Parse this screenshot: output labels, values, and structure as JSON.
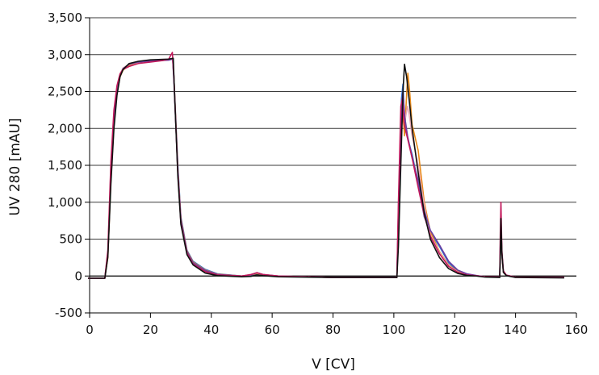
{
  "chart_data": {
    "type": "line",
    "xlabel": "V [CV]",
    "ylabel": "UV 280 [mAU]",
    "xlim": [
      0,
      160
    ],
    "ylim": [
      -500,
      3500
    ],
    "xticks": [
      0,
      20,
      40,
      60,
      80,
      100,
      120,
      140,
      160
    ],
    "yticks": [
      -500,
      0,
      500,
      1000,
      1500,
      2000,
      2500,
      3000,
      3500
    ],
    "xtick_labels": [
      "0",
      "20",
      "40",
      "60",
      "80",
      "100",
      "120",
      "140",
      "160"
    ],
    "ytick_labels": [
      "-500",
      "0",
      "500",
      "1,000",
      "1,500",
      "2,000",
      "2,500",
      "3,000",
      "3,500"
    ],
    "grid": "horizontal",
    "series": [
      {
        "color": "#2e6fd1",
        "points": [
          [
            -0.5,
            -30
          ],
          [
            5,
            -30
          ],
          [
            6,
            300
          ],
          [
            7,
            1400
          ],
          [
            8,
            2100
          ],
          [
            9,
            2500
          ],
          [
            10,
            2720
          ],
          [
            11,
            2810
          ],
          [
            13,
            2870
          ],
          [
            16,
            2900
          ],
          [
            20,
            2920
          ],
          [
            26,
            2930
          ],
          [
            27.3,
            2940
          ],
          [
            27.7,
            2700
          ],
          [
            29,
            1500
          ],
          [
            30,
            800
          ],
          [
            32,
            350
          ],
          [
            34,
            200
          ],
          [
            38,
            90
          ],
          [
            42,
            30
          ],
          [
            50,
            0
          ],
          [
            53,
            10
          ],
          [
            55,
            30
          ],
          [
            57,
            15
          ],
          [
            62,
            0
          ],
          [
            80,
            -20
          ],
          [
            101,
            -20
          ],
          [
            101.5,
            800
          ],
          [
            102.5,
            2400
          ],
          [
            103,
            2600
          ],
          [
            103.4,
            2200
          ],
          [
            104,
            1950
          ],
          [
            106,
            1650
          ],
          [
            108,
            1250
          ],
          [
            110,
            800
          ],
          [
            112,
            600
          ],
          [
            115,
            400
          ],
          [
            118,
            180
          ],
          [
            121,
            70
          ],
          [
            124,
            25
          ],
          [
            127,
            5
          ],
          [
            130,
            -10
          ],
          [
            134.8,
            -15
          ],
          [
            135,
            400
          ],
          [
            135.2,
            750
          ],
          [
            135.5,
            300
          ],
          [
            136,
            60
          ],
          [
            137,
            10
          ],
          [
            140,
            -15
          ],
          [
            156,
            -20
          ]
        ]
      },
      {
        "color": "#e88a1a",
        "points": [
          [
            -0.5,
            -30
          ],
          [
            5,
            -30
          ],
          [
            6,
            250
          ],
          [
            7,
            1300
          ],
          [
            8,
            2050
          ],
          [
            9,
            2480
          ],
          [
            10,
            2700
          ],
          [
            11,
            2790
          ],
          [
            13,
            2860
          ],
          [
            16,
            2900
          ],
          [
            20,
            2920
          ],
          [
            26,
            2930
          ],
          [
            27.3,
            2950
          ],
          [
            27.7,
            2700
          ],
          [
            29,
            1450
          ],
          [
            30,
            780
          ],
          [
            32,
            340
          ],
          [
            34,
            190
          ],
          [
            38,
            80
          ],
          [
            42,
            25
          ],
          [
            50,
            0
          ],
          [
            53,
            15
          ],
          [
            55,
            35
          ],
          [
            57,
            15
          ],
          [
            62,
            0
          ],
          [
            80,
            -20
          ],
          [
            101,
            -20
          ],
          [
            101.5,
            600
          ],
          [
            102.5,
            2000
          ],
          [
            103,
            2200
          ],
          [
            103.5,
            1900
          ],
          [
            104,
            2300
          ],
          [
            104.6,
            2750
          ],
          [
            105.2,
            2500
          ],
          [
            106,
            2050
          ],
          [
            108,
            1700
          ],
          [
            110,
            1000
          ],
          [
            112,
            600
          ],
          [
            115,
            330
          ],
          [
            118,
            150
          ],
          [
            121,
            60
          ],
          [
            124,
            20
          ],
          [
            127,
            5
          ],
          [
            130,
            -10
          ],
          [
            134.8,
            -15
          ],
          [
            135,
            350
          ],
          [
            135.2,
            700
          ],
          [
            135.5,
            280
          ],
          [
            136,
            50
          ],
          [
            137,
            10
          ],
          [
            140,
            -15
          ],
          [
            156,
            -20
          ]
        ]
      },
      {
        "color": "#e9a8b4",
        "points": [
          [
            -0.5,
            -30
          ],
          [
            5,
            -30
          ],
          [
            6,
            320
          ],
          [
            7,
            1500
          ],
          [
            8,
            2200
          ],
          [
            9,
            2560
          ],
          [
            10,
            2740
          ],
          [
            11,
            2820
          ],
          [
            13,
            2870
          ],
          [
            16,
            2905
          ],
          [
            20,
            2920
          ],
          [
            26,
            2935
          ],
          [
            27.3,
            2950
          ],
          [
            27.7,
            2680
          ],
          [
            29,
            1400
          ],
          [
            30,
            740
          ],
          [
            32,
            320
          ],
          [
            34,
            170
          ],
          [
            38,
            70
          ],
          [
            42,
            20
          ],
          [
            50,
            0
          ],
          [
            53,
            20
          ],
          [
            55,
            40
          ],
          [
            57,
            20
          ],
          [
            62,
            0
          ],
          [
            80,
            -20
          ],
          [
            101,
            -20
          ],
          [
            101.5,
            700
          ],
          [
            102.5,
            2100
          ],
          [
            103,
            2350
          ],
          [
            103.6,
            2100
          ],
          [
            104.5,
            2300
          ],
          [
            105,
            2200
          ],
          [
            106,
            1900
          ],
          [
            108,
            1500
          ],
          [
            110,
            950
          ],
          [
            112,
            560
          ],
          [
            115,
            320
          ],
          [
            118,
            140
          ],
          [
            121,
            55
          ],
          [
            124,
            18
          ],
          [
            127,
            5
          ],
          [
            130,
            -10
          ],
          [
            134.8,
            -15
          ],
          [
            135,
            380
          ],
          [
            135.2,
            720
          ],
          [
            135.5,
            290
          ],
          [
            136,
            50
          ],
          [
            137,
            10
          ],
          [
            140,
            -15
          ],
          [
            156,
            -20
          ]
        ]
      },
      {
        "color": "#6a3fa0",
        "points": [
          [
            -0.5,
            -30
          ],
          [
            5,
            -30
          ],
          [
            6,
            280
          ],
          [
            7,
            1350
          ],
          [
            8,
            2100
          ],
          [
            9,
            2520
          ],
          [
            10,
            2720
          ],
          [
            11,
            2810
          ],
          [
            13,
            2870
          ],
          [
            16,
            2900
          ],
          [
            20,
            2915
          ],
          [
            26,
            2925
          ],
          [
            27.3,
            2940
          ],
          [
            27.7,
            2650
          ],
          [
            29,
            1420
          ],
          [
            30,
            760
          ],
          [
            32,
            330
          ],
          [
            34,
            180
          ],
          [
            38,
            75
          ],
          [
            42,
            22
          ],
          [
            50,
            0
          ],
          [
            53,
            15
          ],
          [
            55,
            45
          ],
          [
            57,
            20
          ],
          [
            62,
            0
          ],
          [
            80,
            -20
          ],
          [
            101,
            -20
          ],
          [
            101.5,
            900
          ],
          [
            102.5,
            2300
          ],
          [
            103,
            2500
          ],
          [
            103.6,
            2150
          ],
          [
            104.5,
            1900
          ],
          [
            106,
            1600
          ],
          [
            108,
            1300
          ],
          [
            110,
            880
          ],
          [
            112,
            620
          ],
          [
            115,
            420
          ],
          [
            118,
            200
          ],
          [
            121,
            80
          ],
          [
            124,
            30
          ],
          [
            127,
            8
          ],
          [
            130,
            -10
          ],
          [
            134.8,
            -15
          ],
          [
            135,
            420
          ],
          [
            135.2,
            740
          ],
          [
            135.5,
            300
          ],
          [
            136,
            60
          ],
          [
            137,
            10
          ],
          [
            140,
            -15
          ],
          [
            156,
            -20
          ]
        ]
      },
      {
        "color": "#c2185b",
        "points": [
          [
            -0.5,
            -30
          ],
          [
            5,
            -30
          ],
          [
            6,
            350
          ],
          [
            7,
            1550
          ],
          [
            8,
            2250
          ],
          [
            9,
            2580
          ],
          [
            10,
            2740
          ],
          [
            11,
            2800
          ],
          [
            13,
            2840
          ],
          [
            16,
            2880
          ],
          [
            20,
            2900
          ],
          [
            24,
            2920
          ],
          [
            26,
            2940
          ],
          [
            27.2,
            3030
          ],
          [
            27.7,
            2700
          ],
          [
            29,
            1400
          ],
          [
            30,
            720
          ],
          [
            32,
            310
          ],
          [
            34,
            160
          ],
          [
            38,
            60
          ],
          [
            42,
            15
          ],
          [
            50,
            0
          ],
          [
            53,
            20
          ],
          [
            55,
            45
          ],
          [
            57,
            20
          ],
          [
            62,
            0
          ],
          [
            80,
            -20
          ],
          [
            101,
            -20
          ],
          [
            101.5,
            1000
          ],
          [
            102.3,
            2300
          ],
          [
            102.8,
            2400
          ],
          [
            103.4,
            2050
          ],
          [
            104.3,
            1900
          ],
          [
            106,
            1600
          ],
          [
            108,
            1200
          ],
          [
            110,
            820
          ],
          [
            112,
            540
          ],
          [
            115,
            300
          ],
          [
            118,
            130
          ],
          [
            121,
            50
          ],
          [
            124,
            15
          ],
          [
            127,
            3
          ],
          [
            130,
            -10
          ],
          [
            134.8,
            -15
          ],
          [
            135,
            600
          ],
          [
            135.2,
            1000
          ],
          [
            135.5,
            350
          ],
          [
            136,
            70
          ],
          [
            137,
            10
          ],
          [
            140,
            -15
          ],
          [
            156,
            -20
          ]
        ]
      },
      {
        "color": "#111111",
        "points": [
          [
            -0.5,
            -30
          ],
          [
            5,
            -30
          ],
          [
            6,
            260
          ],
          [
            7,
            1250
          ],
          [
            8,
            2000
          ],
          [
            9,
            2450
          ],
          [
            10,
            2700
          ],
          [
            11,
            2800
          ],
          [
            13,
            2880
          ],
          [
            16,
            2910
          ],
          [
            20,
            2930
          ],
          [
            26,
            2940
          ],
          [
            27.5,
            2950
          ],
          [
            27.8,
            2600
          ],
          [
            29,
            1350
          ],
          [
            30,
            700
          ],
          [
            32,
            290
          ],
          [
            34,
            150
          ],
          [
            38,
            40
          ],
          [
            42,
            5
          ],
          [
            50,
            -10
          ],
          [
            53,
            -5
          ],
          [
            55,
            15
          ],
          [
            57,
            5
          ],
          [
            62,
            -10
          ],
          [
            80,
            -20
          ],
          [
            101,
            -20
          ],
          [
            101.5,
            400
          ],
          [
            102.5,
            1800
          ],
          [
            103,
            2500
          ],
          [
            103.5,
            2870
          ],
          [
            104.2,
            2700
          ],
          [
            105,
            2400
          ],
          [
            106,
            2000
          ],
          [
            108,
            1400
          ],
          [
            110,
            850
          ],
          [
            112,
            500
          ],
          [
            115,
            250
          ],
          [
            118,
            100
          ],
          [
            121,
            35
          ],
          [
            124,
            8
          ],
          [
            127,
            0
          ],
          [
            130,
            -15
          ],
          [
            134.8,
            -20
          ],
          [
            135,
            300
          ],
          [
            135.2,
            780
          ],
          [
            135.5,
            320
          ],
          [
            136,
            50
          ],
          [
            137,
            5
          ],
          [
            140,
            -20
          ],
          [
            156,
            -25
          ]
        ]
      }
    ]
  }
}
